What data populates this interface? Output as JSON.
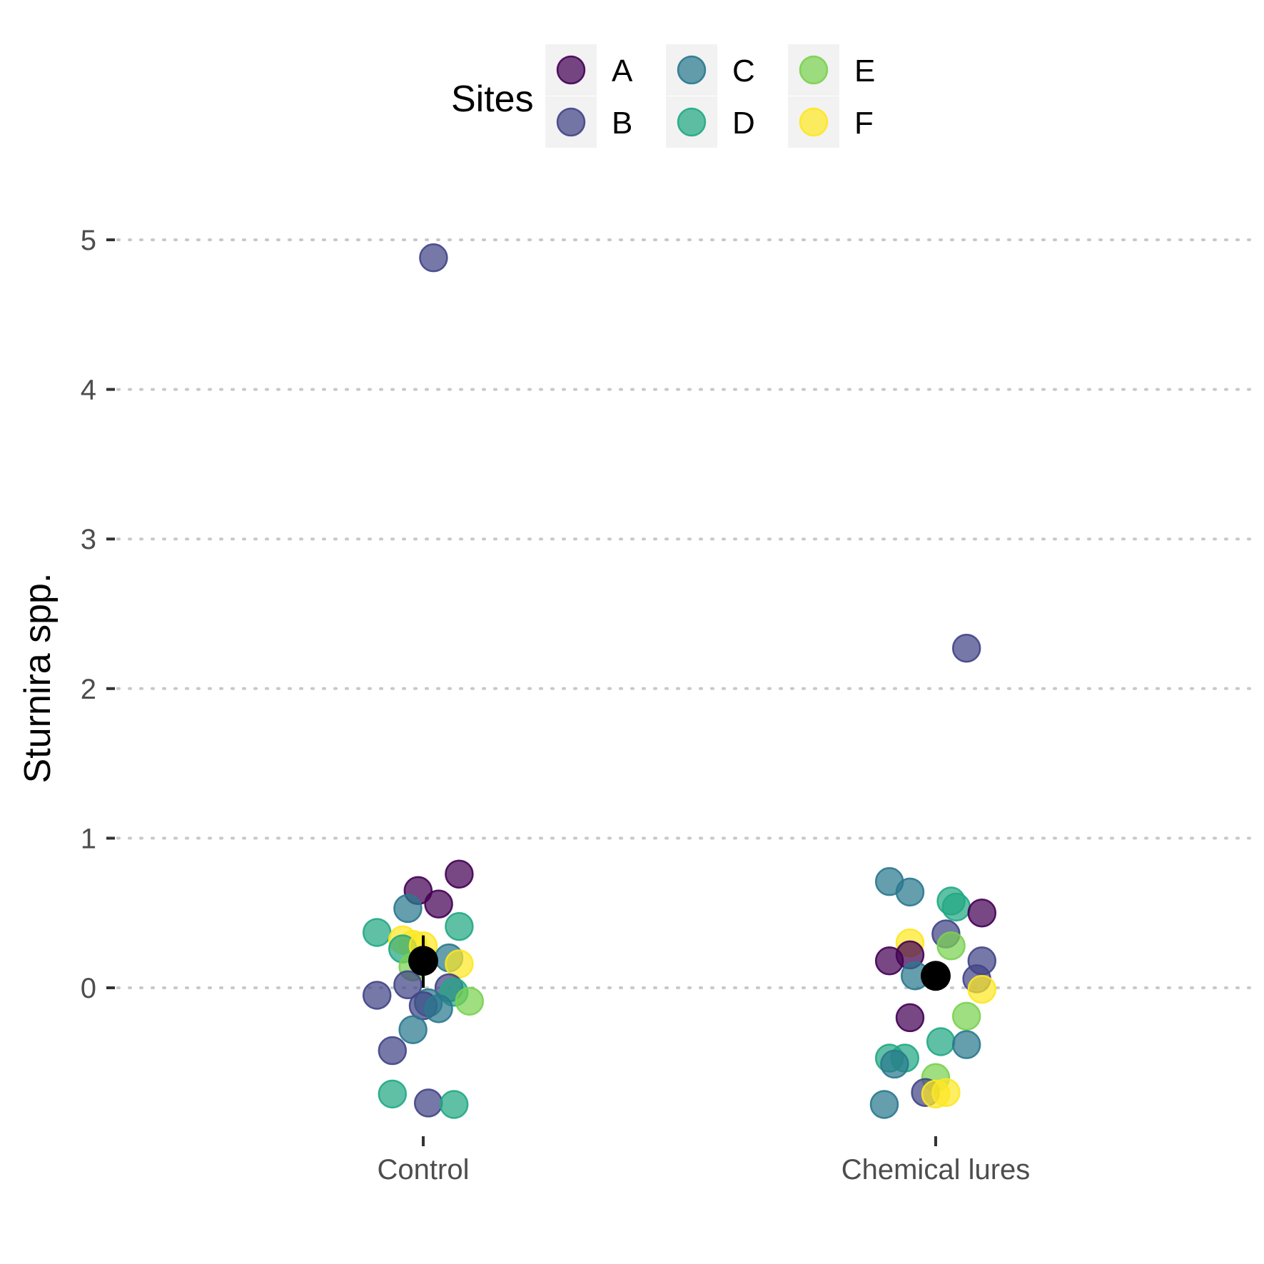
{
  "chart_data": {
    "type": "scatter",
    "title": "",
    "xlabel": "",
    "ylabel": "Sturnira spp.",
    "categories": [
      "Control",
      "Chemical lures"
    ],
    "ylim": [
      -0.95,
      5.3
    ],
    "yticks": [
      0,
      1,
      2,
      3,
      4,
      5
    ],
    "grid": "horizontal dotted",
    "legend": {
      "title": "Sites",
      "position": "top",
      "entries": [
        {
          "label": "A",
          "color": "#440154"
        },
        {
          "label": "B",
          "color": "#414487"
        },
        {
          "label": "C",
          "color": "#2a788e"
        },
        {
          "label": "D",
          "color": "#22a884"
        },
        {
          "label": "E",
          "color": "#7ad151"
        },
        {
          "label": "F",
          "color": "#fde725"
        }
      ]
    },
    "points": [
      {
        "category": "Control",
        "dx": 0.02,
        "y": 4.88,
        "site": "B"
      },
      {
        "category": "Control",
        "dx": 0.07,
        "y": 0.76,
        "site": "A"
      },
      {
        "category": "Control",
        "dx": -0.01,
        "y": 0.65,
        "site": "A"
      },
      {
        "category": "Control",
        "dx": 0.03,
        "y": 0.56,
        "site": "A"
      },
      {
        "category": "Control",
        "dx": -0.03,
        "y": 0.53,
        "site": "C"
      },
      {
        "category": "Control",
        "dx": 0.07,
        "y": 0.41,
        "site": "D"
      },
      {
        "category": "Control",
        "dx": -0.09,
        "y": 0.37,
        "site": "D"
      },
      {
        "category": "Control",
        "dx": -0.04,
        "y": 0.32,
        "site": "F"
      },
      {
        "category": "Control",
        "dx": -0.02,
        "y": 0.29,
        "site": "F"
      },
      {
        "category": "Control",
        "dx": -0.04,
        "y": 0.26,
        "site": "D"
      },
      {
        "category": "Control",
        "dx": 0.0,
        "y": 0.28,
        "site": "F"
      },
      {
        "category": "Control",
        "dx": 0.05,
        "y": 0.2,
        "site": "C"
      },
      {
        "category": "Control",
        "dx": 0.07,
        "y": 0.16,
        "site": "F"
      },
      {
        "category": "Control",
        "dx": -0.02,
        "y": 0.14,
        "site": "E"
      },
      {
        "category": "Control",
        "dx": -0.03,
        "y": 0.02,
        "site": "B"
      },
      {
        "category": "Control",
        "dx": 0.05,
        "y": 0.0,
        "site": "B"
      },
      {
        "category": "Control",
        "dx": 0.06,
        "y": -0.03,
        "site": "D"
      },
      {
        "category": "Control",
        "dx": -0.09,
        "y": -0.05,
        "site": "B"
      },
      {
        "category": "Control",
        "dx": 0.09,
        "y": -0.09,
        "site": "E"
      },
      {
        "category": "Control",
        "dx": 0.01,
        "y": -0.1,
        "site": "C"
      },
      {
        "category": "Control",
        "dx": 0.0,
        "y": -0.12,
        "site": "B"
      },
      {
        "category": "Control",
        "dx": 0.03,
        "y": -0.14,
        "site": "C"
      },
      {
        "category": "Control",
        "dx": -0.02,
        "y": -0.28,
        "site": "C"
      },
      {
        "category": "Control",
        "dx": -0.06,
        "y": -0.42,
        "site": "B"
      },
      {
        "category": "Control",
        "dx": -0.06,
        "y": -0.71,
        "site": "D"
      },
      {
        "category": "Control",
        "dx": 0.01,
        "y": -0.77,
        "site": "B"
      },
      {
        "category": "Control",
        "dx": 0.06,
        "y": -0.78,
        "site": "D"
      },
      {
        "category": "Chemical lures",
        "dx": 0.06,
        "y": 2.27,
        "site": "B"
      },
      {
        "category": "Chemical lures",
        "dx": -0.09,
        "y": 0.71,
        "site": "C"
      },
      {
        "category": "Chemical lures",
        "dx": -0.05,
        "y": 0.64,
        "site": "C"
      },
      {
        "category": "Chemical lures",
        "dx": 0.03,
        "y": 0.58,
        "site": "D"
      },
      {
        "category": "Chemical lures",
        "dx": 0.04,
        "y": 0.54,
        "site": "D"
      },
      {
        "category": "Chemical lures",
        "dx": 0.09,
        "y": 0.5,
        "site": "A"
      },
      {
        "category": "Chemical lures",
        "dx": 0.02,
        "y": 0.36,
        "site": "B"
      },
      {
        "category": "Chemical lures",
        "dx": -0.05,
        "y": 0.3,
        "site": "F"
      },
      {
        "category": "Chemical lures",
        "dx": 0.03,
        "y": 0.28,
        "site": "E"
      },
      {
        "category": "Chemical lures",
        "dx": -0.05,
        "y": 0.22,
        "site": "A"
      },
      {
        "category": "Chemical lures",
        "dx": -0.09,
        "y": 0.18,
        "site": "A"
      },
      {
        "category": "Chemical lures",
        "dx": 0.09,
        "y": 0.18,
        "site": "B"
      },
      {
        "category": "Chemical lures",
        "dx": -0.04,
        "y": 0.08,
        "site": "C"
      },
      {
        "category": "Chemical lures",
        "dx": 0.08,
        "y": 0.06,
        "site": "B"
      },
      {
        "category": "Chemical lures",
        "dx": 0.09,
        "y": -0.01,
        "site": "F"
      },
      {
        "category": "Chemical lures",
        "dx": -0.05,
        "y": -0.2,
        "site": "A"
      },
      {
        "category": "Chemical lures",
        "dx": 0.06,
        "y": -0.19,
        "site": "E"
      },
      {
        "category": "Chemical lures",
        "dx": 0.01,
        "y": -0.36,
        "site": "D"
      },
      {
        "category": "Chemical lures",
        "dx": 0.06,
        "y": -0.38,
        "site": "C"
      },
      {
        "category": "Chemical lures",
        "dx": -0.09,
        "y": -0.47,
        "site": "D"
      },
      {
        "category": "Chemical lures",
        "dx": -0.06,
        "y": -0.47,
        "site": "D"
      },
      {
        "category": "Chemical lures",
        "dx": -0.08,
        "y": -0.51,
        "site": "C"
      },
      {
        "category": "Chemical lures",
        "dx": 0.0,
        "y": -0.6,
        "site": "E"
      },
      {
        "category": "Chemical lures",
        "dx": -0.02,
        "y": -0.7,
        "site": "B"
      },
      {
        "category": "Chemical lures",
        "dx": 0.0,
        "y": -0.71,
        "site": "F"
      },
      {
        "category": "Chemical lures",
        "dx": 0.02,
        "y": -0.7,
        "site": "F"
      },
      {
        "category": "Chemical lures",
        "dx": -0.1,
        "y": -0.78,
        "site": "C"
      }
    ],
    "summary": [
      {
        "category": "Control",
        "mean": 0.18,
        "lower": 0.0,
        "upper": 0.35
      },
      {
        "category": "Chemical lures",
        "mean": 0.08,
        "lower": 0.08,
        "upper": 0.08
      }
    ]
  }
}
